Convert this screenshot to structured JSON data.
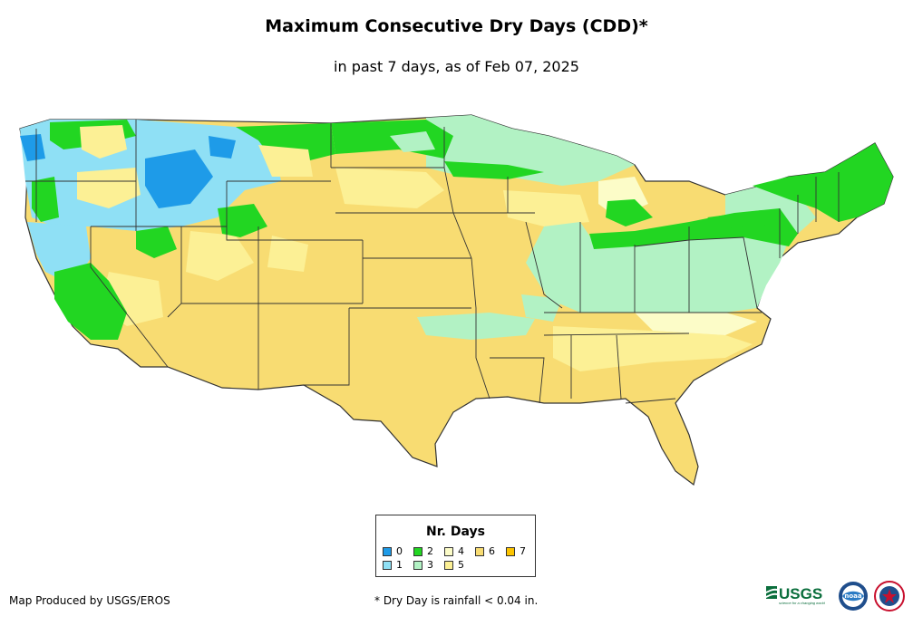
{
  "title": "Maximum Consecutive Dry Days (CDD)*",
  "subtitle": "in past 7 days, as of Feb 07, 2025",
  "legend": {
    "title": "Nr. Days",
    "items": [
      {
        "label": "0",
        "color": "#1e9be8"
      },
      {
        "label": "1",
        "color": "#8fe0f5"
      },
      {
        "label": "2",
        "color": "#22d622"
      },
      {
        "label": "3",
        "color": "#b2f2c4"
      },
      {
        "label": "4",
        "color": "#fcfcc8"
      },
      {
        "label": "5",
        "color": "#fcf095"
      },
      {
        "label": "6",
        "color": "#f8dc72"
      },
      {
        "label": "7",
        "color": "#fcc400"
      }
    ]
  },
  "footer_left": "Map Produced by USGS/EROS",
  "footer_note": "* Dry Day is rainfall < 0.04 in.",
  "logos": {
    "usgs": "USGS",
    "usgs_tagline": "science for a changing world",
    "noaa": "noaa",
    "nws": "NATIONAL WEATHER SERVICE"
  }
}
